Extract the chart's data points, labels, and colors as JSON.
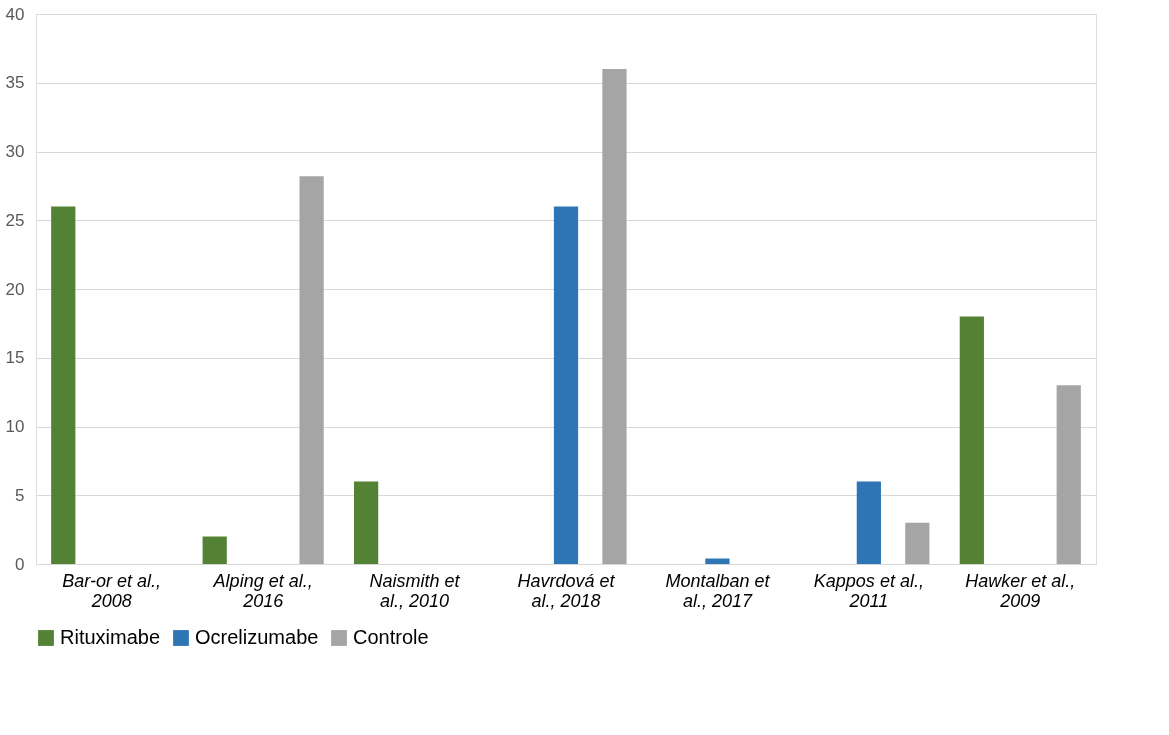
{
  "chart_data": {
    "type": "bar",
    "categories": [
      "Bar-or et al., 2008",
      "Alping et al., 2016",
      "Naismith et al., 2010",
      "Havrdová et al., 2018",
      "Montalban et al., 2017",
      "Kappos et al., 2011",
      "Hawker et al., 2009"
    ],
    "series": [
      {
        "name": "Rituximabe",
        "color": "#548235",
        "values": [
          26,
          2,
          6,
          null,
          null,
          null,
          18
        ]
      },
      {
        "name": "Ocrelizumabe",
        "color": "#2e75b6",
        "values": [
          null,
          null,
          null,
          26,
          0.4,
          6,
          null
        ]
      },
      {
        "name": "Controle",
        "color": "#a5a5a5",
        "values": [
          null,
          28.2,
          null,
          36,
          null,
          3,
          13
        ]
      }
    ],
    "ylim": [
      0,
      40
    ],
    "yticks": [
      0,
      5,
      10,
      15,
      20,
      25,
      30,
      35,
      40
    ],
    "grid": "y",
    "legend": "bottom"
  }
}
